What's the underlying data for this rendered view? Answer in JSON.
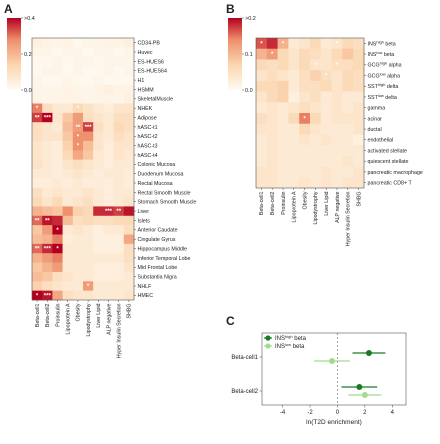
{
  "panel_labels": {
    "a": "A",
    "b": "B",
    "c": "C"
  },
  "chart_data": [
    {
      "id": "A",
      "type": "heatmap",
      "rows": [
        "CD34-PB",
        "Huvec",
        "ES-HUES6",
        "ES-HUES64",
        "H1",
        "HSMM",
        "SkeletalMuscle",
        "NHEK",
        "Adipose",
        "hASC-t1",
        "hASC-t2",
        "hASC-t3",
        "hASC-t4",
        "Colonic Mucosa",
        "Duodenum Mucosa",
        "Rectal Mucosa",
        "Rectal Smooth Muscle",
        "Stomach Smooth Muscle",
        "Liver",
        "Islets",
        "Anterior Caudate",
        "Cingulate Gyrus",
        "Hippocampus Middle",
        "Inferior Temporal Lobe",
        "Mid Frontal Lobe",
        "Substantia Nigra",
        "NHLF",
        "HMEC"
      ],
      "columns": [
        "Beta-cell1",
        "Beta-cell2",
        "Proinsulin",
        "Lipoprotein A",
        "Obesity",
        "Lipodystrophy",
        "Liver Lipid",
        "ALP negative",
        "Hyper Insulin Secretion",
        "SHBG"
      ],
      "colorbar": {
        "ticks": [
          ">0.4",
          "0.2",
          "0.0"
        ],
        "max": 0.4,
        "colors": [
          "#fffbf3",
          "#fbd6b0",
          "#ef8d6b",
          "#b3001f"
        ]
      },
      "values": [
        [
          0.04,
          0.03,
          0.02,
          0.03,
          0.01,
          0.02,
          0.02,
          0.03,
          0.03,
          0.04
        ],
        [
          0.02,
          0.02,
          0.01,
          0.02,
          0.02,
          0.01,
          0.02,
          0.02,
          0.01,
          0.02
        ],
        [
          0.01,
          0.01,
          0.02,
          0.01,
          0.02,
          0.02,
          0.01,
          0.02,
          0.02,
          0.02
        ],
        [
          0.01,
          0.02,
          0.02,
          0.01,
          0.02,
          0.01,
          0.01,
          0.02,
          0.01,
          0.02
        ],
        [
          0.02,
          0.01,
          0.01,
          0.02,
          0.01,
          0.01,
          0.02,
          0.01,
          0.01,
          0.01
        ],
        [
          0.02,
          0.02,
          0.02,
          0.03,
          0.02,
          0.02,
          0.03,
          0.04,
          0.03,
          0.03
        ],
        [
          0.03,
          0.02,
          0.03,
          0.03,
          0.03,
          0.02,
          0.02,
          0.03,
          0.02,
          0.04
        ],
        [
          0.28,
          0.1,
          0.07,
          0.06,
          0.12,
          0.09,
          0.06,
          0.05,
          0.08,
          0.08
        ],
        [
          0.34,
          0.4,
          0.08,
          0.16,
          0.24,
          0.1,
          0.08,
          0.06,
          0.1,
          0.1
        ],
        [
          0.1,
          0.08,
          0.06,
          0.18,
          0.24,
          0.34,
          0.1,
          0.06,
          0.12,
          0.1
        ],
        [
          0.1,
          0.08,
          0.08,
          0.16,
          0.26,
          0.26,
          0.08,
          0.06,
          0.1,
          0.08
        ],
        [
          0.08,
          0.06,
          0.05,
          0.14,
          0.26,
          0.18,
          0.08,
          0.05,
          0.08,
          0.08
        ],
        [
          0.08,
          0.06,
          0.05,
          0.12,
          0.22,
          0.16,
          0.06,
          0.05,
          0.08,
          0.06
        ],
        [
          0.09,
          0.06,
          0.05,
          0.08,
          0.1,
          0.08,
          0.06,
          0.05,
          0.06,
          0.06
        ],
        [
          0.06,
          0.06,
          0.05,
          0.06,
          0.08,
          0.06,
          0.05,
          0.06,
          0.06,
          0.05
        ],
        [
          0.05,
          0.05,
          0.06,
          0.05,
          0.06,
          0.05,
          0.05,
          0.05,
          0.06,
          0.05
        ],
        [
          0.1,
          0.06,
          0.08,
          0.06,
          0.06,
          0.08,
          0.06,
          0.05,
          0.06,
          0.06
        ],
        [
          0.12,
          0.08,
          0.12,
          0.06,
          0.08,
          0.1,
          0.06,
          0.05,
          0.06,
          0.08
        ],
        [
          0.2,
          0.18,
          0.16,
          0.26,
          0.14,
          0.12,
          0.36,
          0.36,
          0.34,
          0.38
        ],
        [
          0.3,
          0.38,
          0.36,
          0.18,
          0.1,
          0.12,
          0.1,
          0.1,
          0.12,
          0.12
        ],
        [
          0.16,
          0.24,
          0.4,
          0.06,
          0.08,
          0.06,
          0.04,
          0.06,
          0.06,
          0.1
        ],
        [
          0.18,
          0.2,
          0.28,
          0.05,
          0.06,
          0.06,
          0.04,
          0.04,
          0.04,
          0.22
        ],
        [
          0.3,
          0.36,
          0.4,
          0.06,
          0.06,
          0.06,
          0.04,
          0.04,
          0.04,
          0.1
        ],
        [
          0.2,
          0.24,
          0.28,
          0.06,
          0.06,
          0.06,
          0.06,
          0.06,
          0.06,
          0.1
        ],
        [
          0.16,
          0.2,
          0.24,
          0.06,
          0.06,
          0.06,
          0.05,
          0.05,
          0.05,
          0.08
        ],
        [
          0.18,
          0.16,
          0.1,
          0.08,
          0.06,
          0.06,
          0.05,
          0.05,
          0.05,
          0.06
        ],
        [
          0.14,
          0.1,
          0.08,
          0.06,
          0.06,
          0.24,
          0.06,
          0.06,
          0.06,
          0.06
        ],
        [
          0.4,
          0.38,
          0.22,
          0.1,
          0.08,
          0.08,
          0.06,
          0.06,
          0.06,
          0.08
        ]
      ],
      "stars": [
        {
          "r": 7,
          "c": 0,
          "text": "*"
        },
        {
          "r": 8,
          "c": 0,
          "text": "**"
        },
        {
          "r": 8,
          "c": 1,
          "text": "***"
        },
        {
          "r": 7,
          "c": 4,
          "text": "*"
        },
        {
          "r": 9,
          "c": 4,
          "text": "**"
        },
        {
          "r": 9,
          "c": 5,
          "text": "***"
        },
        {
          "r": 10,
          "c": 4,
          "text": "*"
        },
        {
          "r": 11,
          "c": 4,
          "text": "*"
        },
        {
          "r": 18,
          "c": 7,
          "text": "***"
        },
        {
          "r": 18,
          "c": 8,
          "text": "**"
        },
        {
          "r": 19,
          "c": 0,
          "text": "**"
        },
        {
          "r": 19,
          "c": 1,
          "text": "**"
        },
        {
          "r": 20,
          "c": 2,
          "text": "*"
        },
        {
          "r": 22,
          "c": 0,
          "text": "**"
        },
        {
          "r": 22,
          "c": 1,
          "text": "***"
        },
        {
          "r": 22,
          "c": 2,
          "text": "*"
        },
        {
          "r": 26,
          "c": 5,
          "text": "*"
        },
        {
          "r": 27,
          "c": 0,
          "text": "*"
        },
        {
          "r": 27,
          "c": 1,
          "text": "***"
        }
      ]
    },
    {
      "id": "B",
      "type": "heatmap",
      "rows": [
        "INS^high beta",
        "INS^low beta",
        "GCG^high alpha",
        "GCG^low alpha",
        "SST^high delta",
        "SST^low delta",
        "gamma",
        "acinar",
        "ductal",
        "endothelial",
        "activated stellate",
        "quiescent stellate",
        "pancreatic macrophage",
        "pancreatic CD8+ T"
      ],
      "columns": [
        "Beta-cell1",
        "Beta-cell2",
        "Proinsulin",
        "Lipoprotein A",
        "Obesity",
        "Lipodystrophy",
        "Liver Lipid",
        "ALP negative",
        "Hyper Insulin Secretion",
        "SHBG"
      ],
      "colorbar": {
        "ticks": [
          ">0.2",
          "0.1",
          "0.0"
        ],
        "max": 0.2,
        "colors": [
          "#fffbf3",
          "#fbd6b0",
          "#ef8d6b",
          "#b3001f"
        ]
      },
      "values": [
        [
          0.16,
          0.18,
          0.1,
          0.03,
          0.04,
          0.06,
          0.03,
          0.04,
          0.06,
          0.05
        ],
        [
          0.1,
          0.12,
          0.06,
          0.04,
          0.06,
          0.05,
          0.04,
          0.06,
          0.08,
          0.06
        ],
        [
          0.06,
          0.05,
          0.06,
          0.04,
          0.06,
          0.04,
          0.04,
          0.05,
          0.05,
          0.06
        ],
        [
          0.04,
          0.05,
          0.04,
          0.03,
          0.05,
          0.07,
          0.05,
          0.04,
          0.06,
          0.05
        ],
        [
          0.06,
          0.06,
          0.07,
          0.03,
          0.05,
          0.05,
          0.06,
          0.04,
          0.06,
          0.05
        ],
        [
          0.04,
          0.06,
          0.07,
          0.02,
          0.04,
          0.05,
          0.03,
          0.04,
          0.03,
          0.03
        ],
        [
          0.03,
          0.04,
          0.03,
          0.04,
          0.05,
          0.04,
          0.03,
          0.04,
          0.03,
          0.04
        ],
        [
          0.05,
          0.04,
          0.03,
          0.06,
          0.14,
          0.06,
          0.03,
          0.04,
          0.04,
          0.04
        ],
        [
          0.04,
          0.04,
          0.03,
          0.03,
          0.06,
          0.04,
          0.03,
          0.03,
          0.03,
          0.04
        ],
        [
          0.03,
          0.04,
          0.03,
          0.03,
          0.04,
          0.03,
          0.04,
          0.03,
          0.03,
          0.02
        ],
        [
          0.03,
          0.04,
          0.03,
          0.03,
          0.03,
          0.03,
          0.03,
          0.03,
          0.03,
          0.03
        ],
        [
          0.03,
          0.04,
          0.03,
          0.03,
          0.03,
          0.03,
          0.03,
          0.03,
          0.04,
          0.03
        ],
        [
          0.04,
          0.04,
          0.03,
          0.03,
          0.03,
          0.03,
          0.04,
          0.03,
          0.03,
          0.04
        ],
        [
          0.04,
          0.04,
          0.03,
          0.03,
          0.04,
          0.03,
          0.04,
          0.03,
          0.04,
          0.04
        ]
      ],
      "stars": [
        {
          "r": 0,
          "c": 0,
          "text": "*"
        },
        {
          "r": 0,
          "c": 2,
          "text": "*"
        },
        {
          "r": 0,
          "c": 7,
          "text": "*"
        },
        {
          "r": 1,
          "c": 1,
          "text": "*"
        },
        {
          "r": 2,
          "c": 5,
          "text": "*"
        },
        {
          "r": 2,
          "c": 7,
          "text": "*"
        },
        {
          "r": 3,
          "c": 6,
          "text": "*"
        },
        {
          "r": 7,
          "c": 4,
          "text": "*"
        }
      ]
    },
    {
      "id": "C",
      "type": "scatter",
      "categories": [
        "Beta-cell1",
        "Beta-cell2"
      ],
      "series": [
        {
          "name": "INS^high beta",
          "color": "#1a7a26",
          "points": [
            {
              "y": "Beta-cell1",
              "x": 2.3,
              "lo": 1.1,
              "hi": 3.5
            },
            {
              "y": "Beta-cell2",
              "x": 1.6,
              "lo": 0.3,
              "hi": 2.9
            }
          ]
        },
        {
          "name": "INS^low beta",
          "color": "#9fdc8f",
          "points": [
            {
              "y": "Beta-cell1",
              "x": -0.4,
              "lo": -1.7,
              "hi": 0.9
            },
            {
              "y": "Beta-cell2",
              "x": 2.0,
              "lo": 0.8,
              "hi": 3.2
            }
          ]
        }
      ],
      "xlabel": "ln(T2D enrichment)",
      "xlim": [
        -5.5,
        5
      ],
      "xticks": [
        -4,
        -2,
        0,
        2,
        4
      ],
      "refline": 0
    }
  ]
}
